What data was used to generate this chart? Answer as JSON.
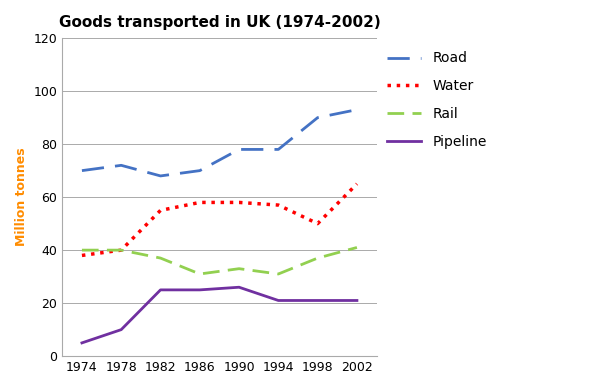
{
  "title": "Goods transported in UK (1974-2002)",
  "ylabel": "Million tonnes",
  "years": [
    1974,
    1978,
    1982,
    1986,
    1990,
    1994,
    1998,
    2002
  ],
  "road": [
    70,
    72,
    68,
    70,
    78,
    78,
    90,
    93
  ],
  "water": [
    38,
    40,
    55,
    58,
    58,
    57,
    50,
    65
  ],
  "rail": [
    40,
    40,
    37,
    31,
    33,
    31,
    37,
    41
  ],
  "pipeline": [
    5,
    10,
    25,
    25,
    26,
    21,
    21,
    21
  ],
  "road_color": "#4472C4",
  "water_color": "#FF0000",
  "rail_color": "#92D050",
  "pipeline_color": "#7030A0",
  "ylim": [
    0,
    120
  ],
  "yticks": [
    0,
    20,
    40,
    60,
    80,
    100,
    120
  ],
  "title_fontsize": 11,
  "tick_fontsize": 9,
  "legend_fontsize": 10,
  "legend_labels": [
    "Road",
    "Water",
    "Rail",
    "Pipeline"
  ]
}
